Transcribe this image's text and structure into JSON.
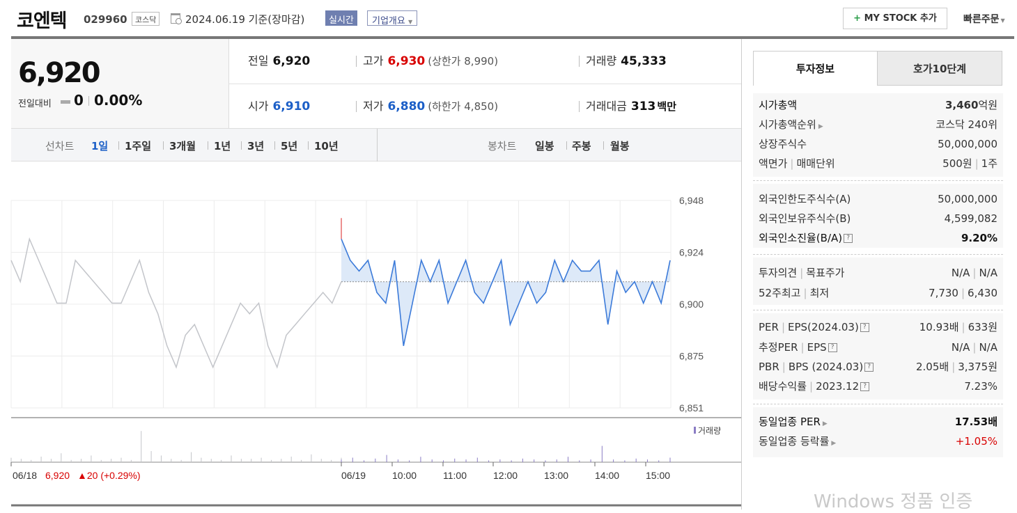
{
  "header": {
    "company_name": "코엔텍",
    "code": "029960",
    "market": "코스닥",
    "date": "2024.06.19 기준(장마감)",
    "realtime": "실시간",
    "company_info": "기업개요",
    "my_stock": "MY STOCK 추가",
    "quick_order": "빠른주문"
  },
  "price": {
    "current": "6,920",
    "change_label": "전일대비",
    "change_value": "0",
    "change_pct": "0.00%"
  },
  "stats": {
    "prev_label": "전일",
    "prev_value": "6,920",
    "high_label": "고가",
    "high_value": "6,930",
    "upper_limit": "(상한가 8,990)",
    "volume_label": "거래량",
    "volume_value": "45,333",
    "open_label": "시가",
    "open_value": "6,910",
    "low_label": "저가",
    "low_value": "6,880",
    "lower_limit": "(하한가 4,850)",
    "amount_label": "거래대금",
    "amount_value": "313",
    "amount_unit": "백만"
  },
  "tabs": {
    "line_chart_label": "선차트",
    "line_periods": [
      "1일",
      "1주일",
      "3개월",
      "1년",
      "3년",
      "5년",
      "10년"
    ],
    "candle_label": "봉차트",
    "candle_periods": [
      "일봉",
      "주봉",
      "월봉"
    ]
  },
  "chart_data": {
    "type": "line",
    "y_ticks": [
      "6,948",
      "6,924",
      "6,900",
      "6,875",
      "6,851"
    ],
    "ylim": [
      6851,
      6948
    ],
    "x_ticks": [
      "06/19",
      "10:00",
      "11:00",
      "12:00",
      "13:00",
      "14:00",
      "15:00"
    ],
    "prev_day_label": "06/18",
    "prev_day_close": "6,920",
    "prev_day_change": "▲20 (+0.29%)",
    "volume_legend": "거래량",
    "series": [
      {
        "values": [
          6920,
          6910,
          6930,
          6920,
          6910,
          6900,
          6900,
          6920,
          6915,
          6910,
          6905,
          6900,
          6900,
          6910,
          6920,
          6905,
          6895,
          6880,
          6870,
          6885,
          6890,
          6880,
          6870,
          6880,
          6890,
          6900,
          6895,
          6900,
          6880,
          6870,
          6885,
          6890,
          6895,
          6900,
          6905,
          6900,
          6910
        ]
      },
      {
        "values": [
          6930,
          6920,
          6915,
          6920,
          6905,
          6900,
          6920,
          6880,
          6900,
          6920,
          6910,
          6920,
          6900,
          6910,
          6920,
          6905,
          6900,
          6910,
          6920,
          6890,
          6900,
          6910,
          6900,
          6905,
          6920,
          6910,
          6920,
          6915,
          6915,
          6920,
          6890,
          6915,
          6905,
          6910,
          6900,
          6910,
          6900,
          6920
        ]
      }
    ]
  },
  "invest": {
    "tab_on": "투자정보",
    "tab_off": "호가10단계",
    "market_cap_label": "시가총액",
    "market_cap_value": "3,460",
    "market_cap_unit": "억원",
    "rank_label": "시가총액순위",
    "rank_value": "코스닥 240위",
    "shares_label": "상장주식수",
    "shares_value": "50,000,000",
    "par_label": "액면가",
    "unit_label": "매매단위",
    "par_value": "500원",
    "unit_value": "1주",
    "foreign_limit_label": "외국인한도주식수(A)",
    "foreign_limit_value": "50,000,000",
    "foreign_hold_label": "외국인보유주식수(B)",
    "foreign_hold_value": "4,599,082",
    "foreign_ratio_label": "외국인소진율(B/A)",
    "foreign_ratio_value": "9.20%",
    "opinion_label": "투자의견",
    "target_label": "목표주가",
    "opinion_value": "N/A",
    "target_value": "N/A",
    "w52_high_label": "52주최고",
    "w52_low_label": "최저",
    "w52_high": "7,730",
    "w52_low": "6,430",
    "per_label": "PER",
    "eps_label": "EPS(2024.03)",
    "per_value": "10.93배",
    "eps_value": "633원",
    "est_per_label": "추정PER",
    "est_eps_label": "EPS",
    "est_per_value": "N/A",
    "est_eps_value": "N/A",
    "pbr_label": "PBR",
    "bps_label": "BPS (2024.03)",
    "pbr_value": "2.05배",
    "bps_value": "3,375원",
    "div_label": "배당수익률",
    "div_year": "2023.12",
    "div_value": "7.23%",
    "ind_per_label": "동일업종 PER",
    "ind_per_value": "17.53",
    "ind_per_unit": "배",
    "ind_chg_label": "동일업종 등락률",
    "ind_chg_value": "+1.05%"
  },
  "watermark": "Windows 정품 인증"
}
